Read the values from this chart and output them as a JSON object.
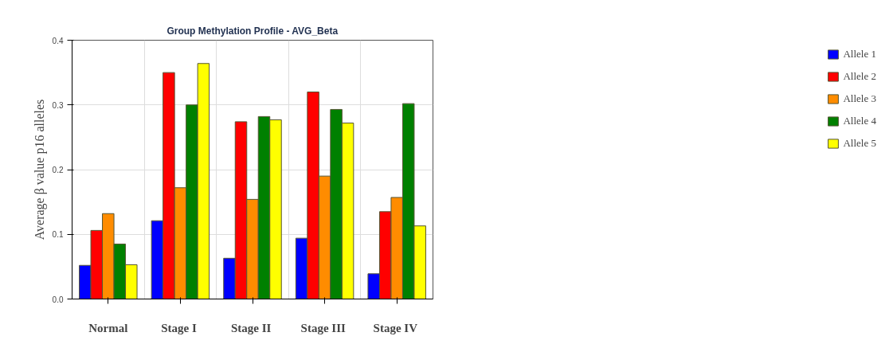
{
  "chart_data": {
    "type": "bar",
    "title": "Group Methylation Profile - AVG_Beta",
    "ylabel": "Average β value p16 alleles",
    "categories": [
      "Normal",
      "Stage  I",
      "Stage  II",
      "Stage  III",
      "Stage  IV"
    ],
    "series": [
      {
        "name": "Allele 1",
        "color": "#0000ff",
        "values": [
          0.052,
          0.121,
          0.063,
          0.094,
          0.039
        ]
      },
      {
        "name": "Allele 2",
        "color": "#ff0000",
        "values": [
          0.106,
          0.35,
          0.274,
          0.32,
          0.135
        ]
      },
      {
        "name": "Allele 3",
        "color": "#ff8c00",
        "values": [
          0.132,
          0.172,
          0.154,
          0.19,
          0.157
        ]
      },
      {
        "name": "Allele 4",
        "color": "#008000",
        "values": [
          0.085,
          0.3,
          0.282,
          0.293,
          0.302
        ]
      },
      {
        "name": "Allele 5",
        "color": "#ffff00",
        "values": [
          0.053,
          0.364,
          0.277,
          0.272,
          0.113
        ]
      }
    ],
    "ylim": [
      0,
      0.4
    ],
    "yticks": [
      {
        "value": 0,
        "label": "0.0"
      },
      0.1,
      0.2,
      0.3,
      0.4
    ],
    "grid": true,
    "legend": "right"
  }
}
